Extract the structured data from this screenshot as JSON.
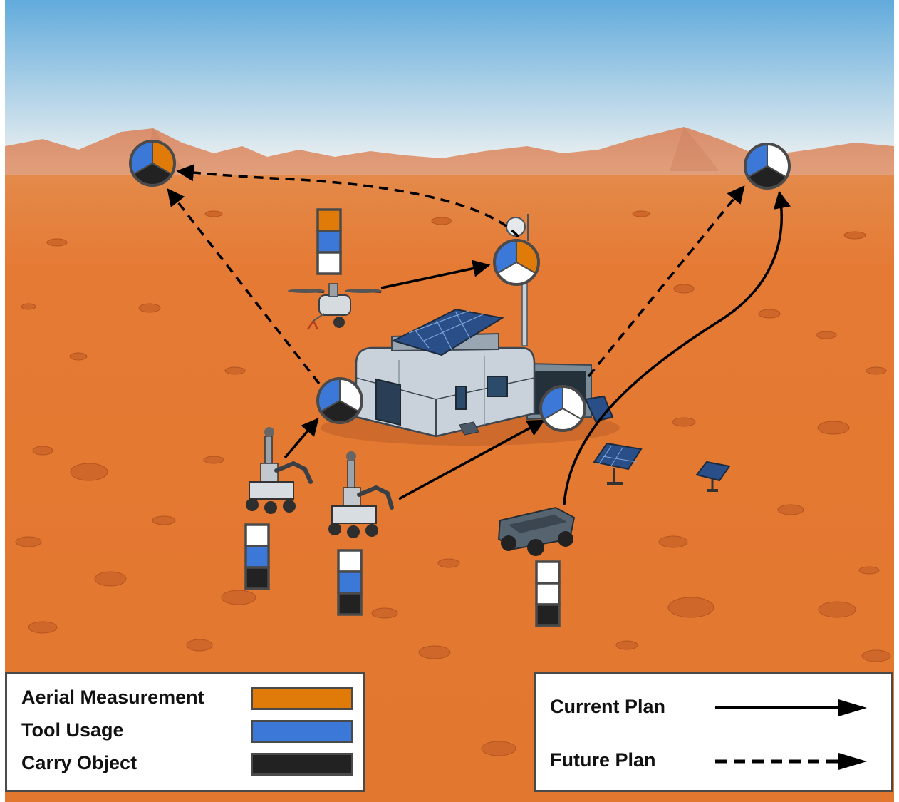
{
  "colors": {
    "aerial_measurement": "#e07b0a",
    "tool_usage": "#3b78d8",
    "carry_object": "#222222",
    "empty_slot": "#ffffff",
    "sky_top": "#6fb4e0",
    "sky_bottom": "#e6eef0",
    "ground": "#e47a36"
  },
  "capability_legend": {
    "aerial_measurement": "Aerial Measurement",
    "tool_usage": "Tool Usage",
    "carry_object": "Carry Object"
  },
  "plan_legend": {
    "current_plan": "Current Plan",
    "future_plan": "Future Plan"
  },
  "robots": [
    {
      "id": "drone",
      "icon": "quadcopter-drone-icon",
      "capabilities": [
        "aerial_measurement",
        "tool_usage",
        "empty"
      ]
    },
    {
      "id": "rover-1",
      "icon": "rover-arm-robot-icon",
      "capabilities": [
        "empty",
        "tool_usage",
        "carry_object"
      ]
    },
    {
      "id": "rover-2",
      "icon": "rover-arm-robot-icon",
      "capabilities": [
        "empty",
        "tool_usage",
        "carry_object"
      ]
    },
    {
      "id": "cart",
      "icon": "transport-cart-icon",
      "capabilities": [
        "empty",
        "empty",
        "carry_object"
      ]
    }
  ],
  "tasks": [
    {
      "id": "task-far-left",
      "requirements": [
        "tool_usage",
        "aerial_measurement",
        "carry_object"
      ]
    },
    {
      "id": "task-far-right",
      "requirements": [
        "tool_usage",
        "empty",
        "carry_object"
      ]
    },
    {
      "id": "task-antenna",
      "requirements": [
        "tool_usage",
        "aerial_measurement",
        "empty"
      ]
    },
    {
      "id": "task-habitat-left",
      "requirements": [
        "tool_usage",
        "empty",
        "carry_object"
      ]
    },
    {
      "id": "task-habitat-right",
      "requirements": [
        "tool_usage",
        "empty",
        "empty"
      ]
    }
  ],
  "plans": [
    {
      "from": "drone",
      "to": "task-antenna",
      "kind": "current"
    },
    {
      "from": "rover-1",
      "to": "task-habitat-left",
      "kind": "current"
    },
    {
      "from": "rover-2",
      "to": "task-habitat-right",
      "kind": "current"
    },
    {
      "from": "cart",
      "to": "task-far-right",
      "kind": "current"
    },
    {
      "from": "task-antenna",
      "to": "task-far-left",
      "kind": "future"
    },
    {
      "from": "task-habitat-left",
      "to": "task-far-left",
      "kind": "future"
    },
    {
      "from": "task-habitat-right",
      "to": "task-far-right",
      "kind": "future"
    }
  ]
}
